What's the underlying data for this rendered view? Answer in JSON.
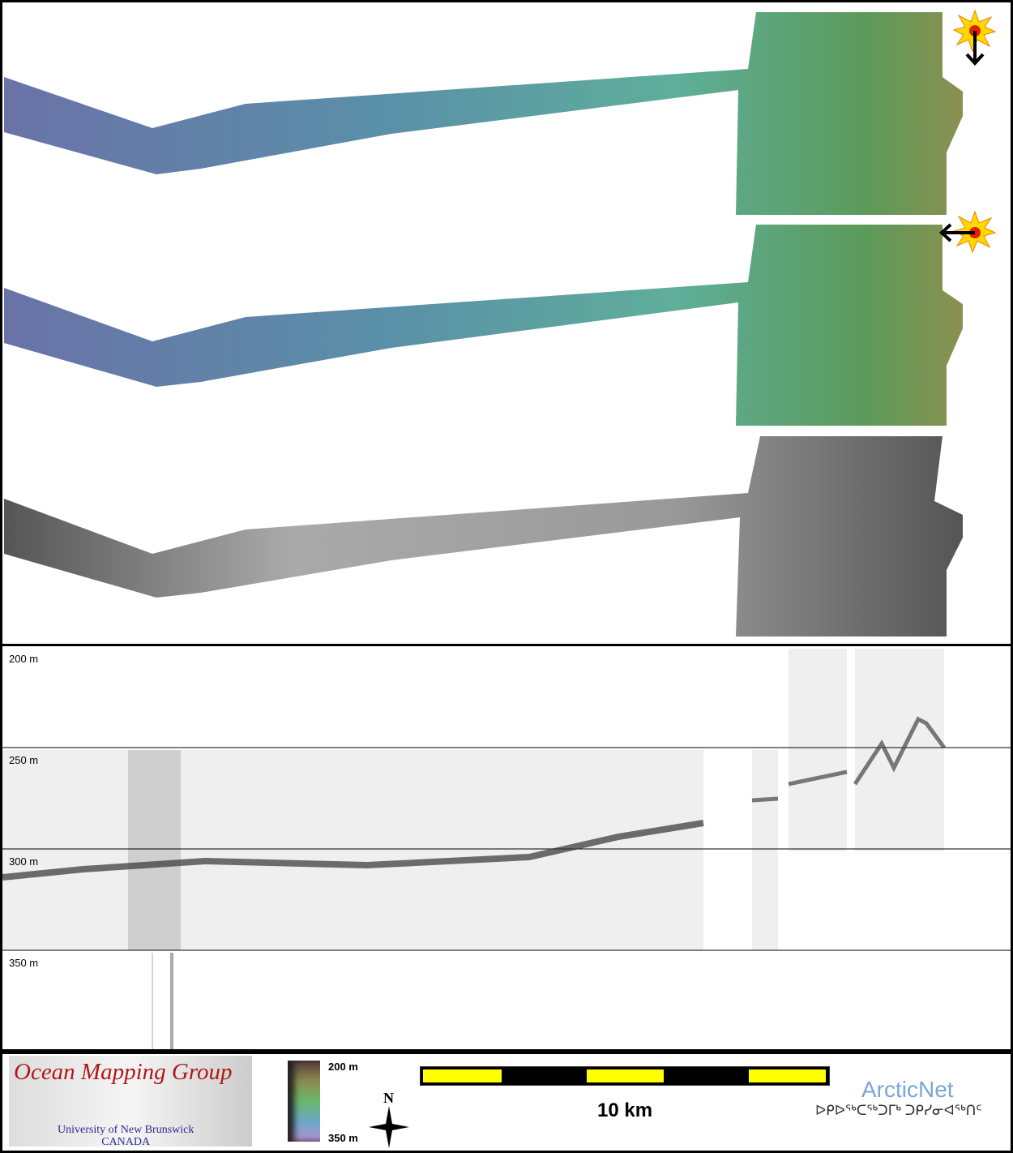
{
  "profile": {
    "depth_labels": [
      "200 m",
      "250 m",
      "300 m",
      "350 m"
    ]
  },
  "footer": {
    "logo_title": "Ocean Mapping Group",
    "logo_line1": "University of New Brunswick",
    "logo_line2": "CANADA",
    "colorbar_top": "200 m",
    "colorbar_bottom": "350 m",
    "north_label": "N",
    "scale_label": "10 km",
    "partner_name": "ArcticNet",
    "partner_syllabics": "ᐅᑭᐅᖅᑕᖅᑐᒥᒃ ᑐᑭᓯᓂᐊᖅᑎᑦ"
  },
  "colors": {
    "scale_yellow": "#ffff00",
    "logo_red": "#b01818",
    "arcticnet_blue": "#7aa6d6"
  },
  "icons": [
    "sun-illumination-icon",
    "arrow-down-icon",
    "arrow-left-icon",
    "north-arrow-icon"
  ]
}
